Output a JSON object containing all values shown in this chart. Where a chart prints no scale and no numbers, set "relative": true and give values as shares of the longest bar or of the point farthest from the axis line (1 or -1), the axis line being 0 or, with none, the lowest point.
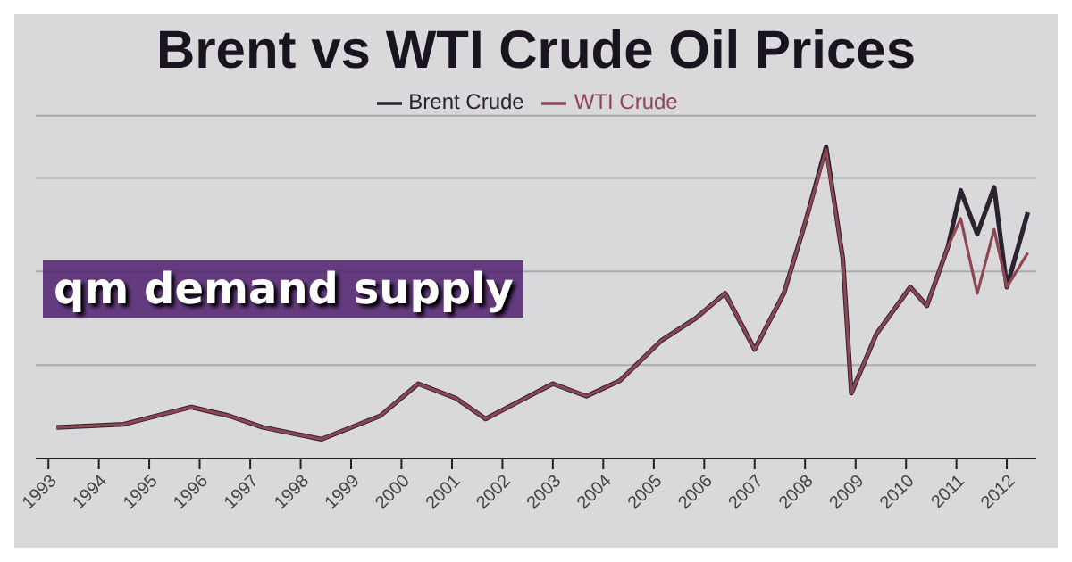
{
  "chart_data": {
    "type": "line",
    "title": "Brent vs WTI Crude Oil Prices",
    "annotations": [
      "qm demand supply"
    ],
    "relative": true,
    "legend": "top",
    "grid": "y",
    "marker": "none",
    "x": [
      "1993-03",
      "1994-07",
      "1995-11",
      "1996-08",
      "1997-04",
      "1998-06",
      "1999-08",
      "2000-05",
      "2001-02",
      "2001-09",
      "2002-05",
      "2003-01",
      "2003-09",
      "2004-05",
      "2005-03",
      "2005-11",
      "2006-06",
      "2007-01",
      "2007-08",
      "2008-01",
      "2008-06",
      "2008-10",
      "2008-12",
      "2009-06",
      "2010-02",
      "2010-06",
      "2010-11",
      "2011-02",
      "2011-06",
      "2011-10",
      "2012-01",
      "2012-06"
    ],
    "series": [
      {
        "name": "Brent Crude",
        "color": "#2b2330",
        "values": [
          0.1,
          0.11,
          0.165,
          0.137,
          0.1,
          0.062,
          0.137,
          0.24,
          0.193,
          0.127,
          0.183,
          0.24,
          0.2,
          0.25,
          0.38,
          0.45,
          0.53,
          0.35,
          0.53,
          0.755,
          1.0,
          0.64,
          0.21,
          0.4,
          0.55,
          0.49,
          0.68,
          0.86,
          0.72,
          0.87,
          0.55,
          0.79
        ]
      },
      {
        "name": "WTI Crude",
        "color": "#8e4653",
        "values": [
          0.1,
          0.11,
          0.165,
          0.137,
          0.1,
          0.062,
          0.137,
          0.24,
          0.193,
          0.127,
          0.183,
          0.24,
          0.2,
          0.25,
          0.38,
          0.45,
          0.53,
          0.35,
          0.53,
          0.755,
          0.99,
          0.64,
          0.21,
          0.4,
          0.55,
          0.49,
          0.68,
          0.77,
          0.53,
          0.735,
          0.55,
          0.66
        ]
      }
    ],
    "xlim": [
      "1992-10",
      "2012-08"
    ],
    "xticks": [
      "1993",
      "1994",
      "1995",
      "1996",
      "1997",
      "1998",
      "1999",
      "2000",
      "2001",
      "2002",
      "2003",
      "2004",
      "2005",
      "2006",
      "2007",
      "2008",
      "2009",
      "2010",
      "2011",
      "2012"
    ]
  }
}
